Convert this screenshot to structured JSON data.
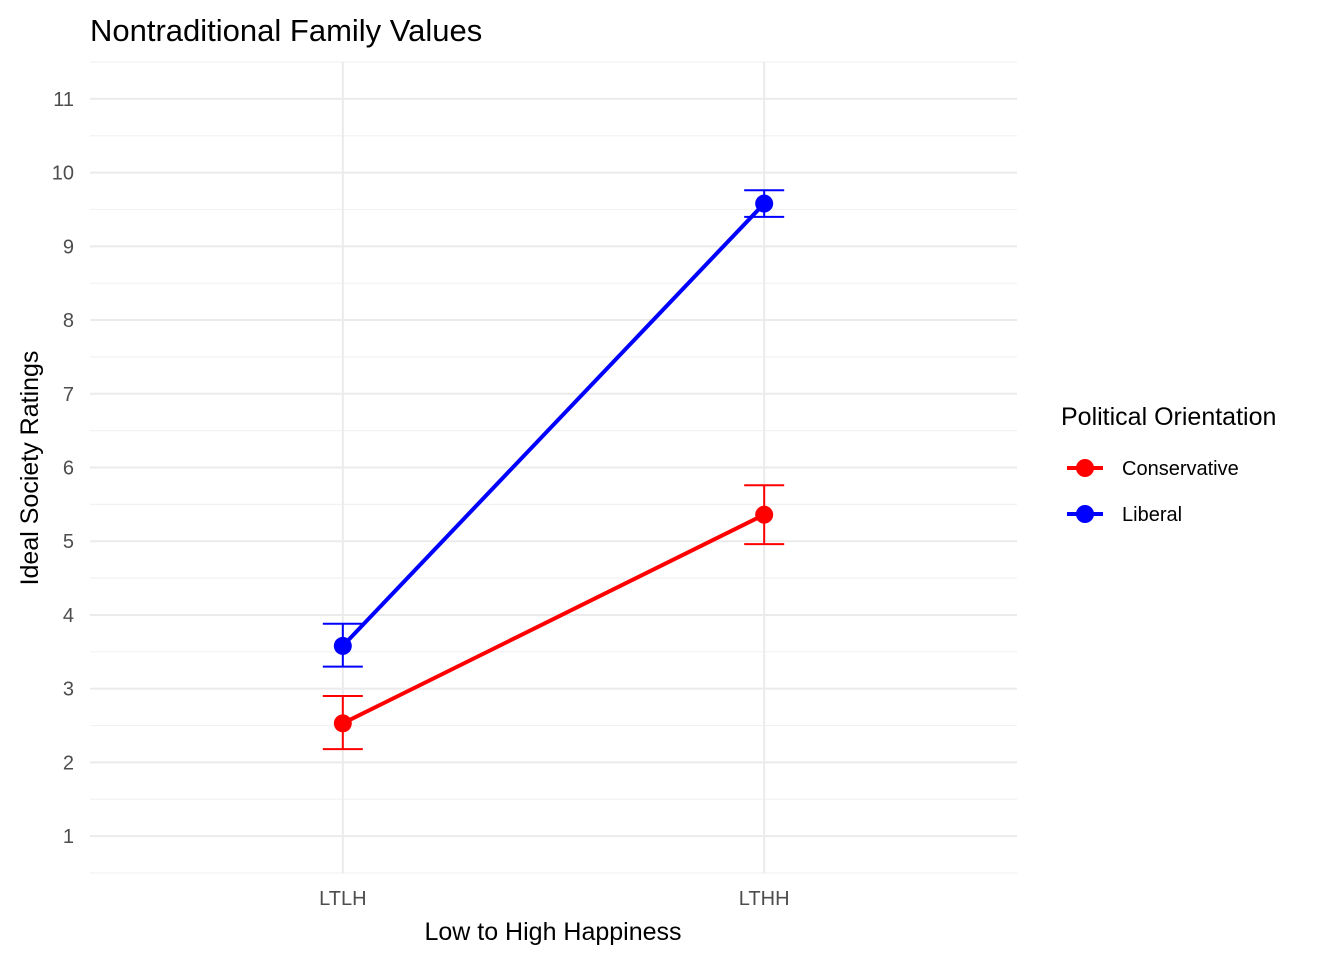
{
  "chart_data": {
    "type": "line",
    "title": "Nontraditional Family Values",
    "xlabel": "Low to High Happiness",
    "ylabel": "Ideal Society Ratings",
    "categories": [
      "LTLH",
      "LTHH"
    ],
    "ylim": [
      0.5,
      11.5
    ],
    "yticks": [
      1,
      2,
      3,
      4,
      5,
      6,
      7,
      8,
      9,
      10,
      11
    ],
    "yticklabels": [
      "1",
      "2",
      "3",
      "4",
      "5",
      "6",
      "7",
      "8",
      "9",
      "10",
      "11"
    ],
    "grid": true,
    "legend": {
      "title": "Political Orientation",
      "position": "right"
    },
    "series": [
      {
        "name": "Conservative",
        "color": "#ff0000",
        "values": [
          2.53,
          5.36
        ],
        "lower": [
          2.18,
          4.96
        ],
        "upper": [
          2.9,
          5.76
        ]
      },
      {
        "name": "Liberal",
        "color": "#0000ff",
        "values": [
          3.58,
          9.58
        ],
        "lower": [
          3.3,
          9.4
        ],
        "upper": [
          3.88,
          9.76
        ]
      }
    ]
  }
}
